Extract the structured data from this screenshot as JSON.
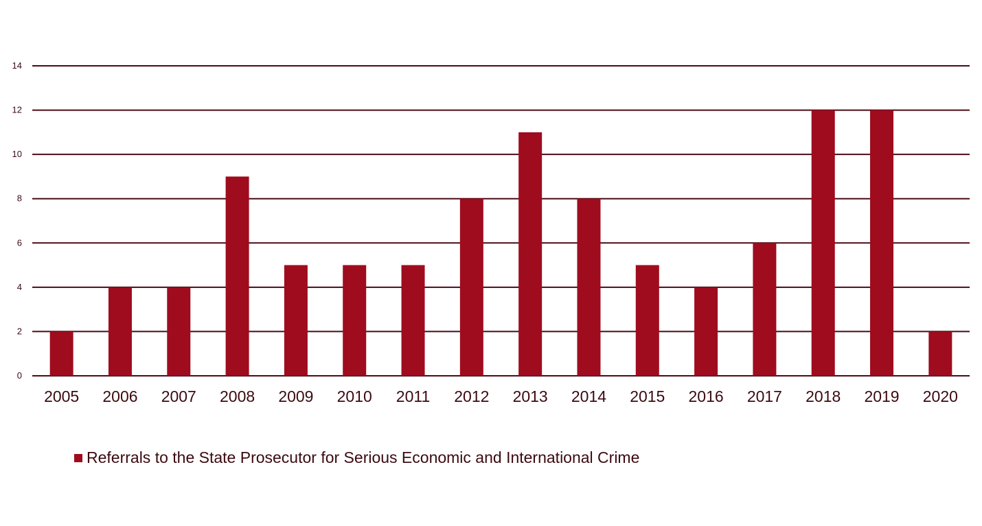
{
  "chart_data": {
    "type": "bar",
    "categories": [
      "2005",
      "2006",
      "2007",
      "2008",
      "2009",
      "2010",
      "2011",
      "2012",
      "2013",
      "2014",
      "2015",
      "2016",
      "2017",
      "2018",
      "2019",
      "2020"
    ],
    "series": [
      {
        "name": "Referrals to the State Prosecutor for Serious Economic and International Crime",
        "values": [
          2,
          4,
          4,
          9,
          5,
          5,
          5,
          8,
          11,
          8,
          5,
          4,
          6,
          12,
          12,
          2
        ]
      }
    ],
    "title": "",
    "xlabel": "",
    "ylabel": "",
    "ylim": [
      0,
      14
    ],
    "yticks": [
      0,
      2,
      4,
      6,
      8,
      10,
      12,
      14
    ],
    "grid": true,
    "legend_position": "bottom-left",
    "colors": {
      "bar": "#9e0c1e",
      "grid": "#4a0a14",
      "text": "#3b0a10"
    }
  }
}
